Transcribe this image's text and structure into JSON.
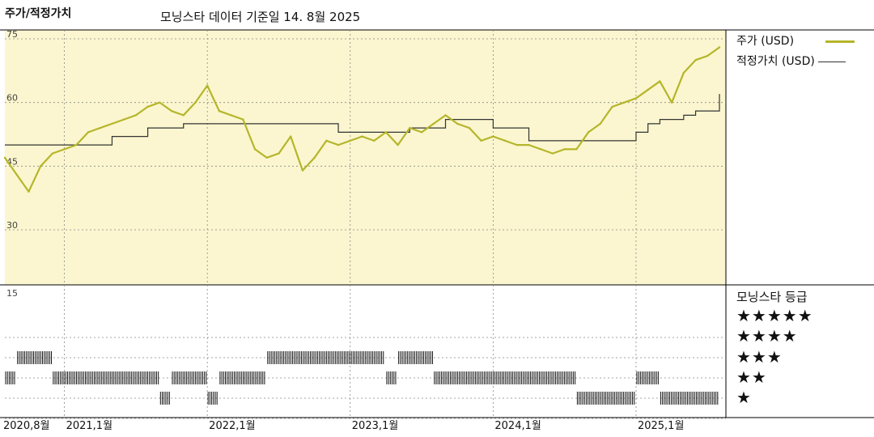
{
  "header": {
    "title": "주가/적정가치",
    "subtitle": "모닝스타 데이터 기준일 14. 8월 2025"
  },
  "legend": {
    "price_label": "주가 (USD)",
    "fair_value_label": "적정가치 (USD)",
    "price_color": "#b5b52a",
    "fair_value_color": "#333333"
  },
  "ratings": {
    "title": "모닝스타 등급",
    "levels": [
      "★★★★★",
      "★★★★",
      "★★★",
      "★★",
      "★"
    ]
  },
  "chart_data": {
    "type": "line",
    "upper_panel": {
      "ylim": [
        15,
        75
      ],
      "yticks": [
        "75",
        "60",
        "45",
        "30"
      ],
      "grid": true,
      "background": "#fbf6cf",
      "series": [
        {
          "name": "주가 (USD)",
          "color": "#b5b52a",
          "x": [
            "2020-08",
            "2020-09",
            "2020-10",
            "2020-11",
            "2020-12",
            "2021-01",
            "2021-02",
            "2021-03",
            "2021-04",
            "2021-05",
            "2021-06",
            "2021-07",
            "2021-08",
            "2021-09",
            "2021-10",
            "2021-11",
            "2021-12",
            "2022-01",
            "2022-02",
            "2022-03",
            "2022-04",
            "2022-05",
            "2022-06",
            "2022-07",
            "2022-08",
            "2022-09",
            "2022-10",
            "2022-11",
            "2022-12",
            "2023-01",
            "2023-02",
            "2023-03",
            "2023-04",
            "2023-05",
            "2023-06",
            "2023-07",
            "2023-08",
            "2023-09",
            "2023-10",
            "2023-11",
            "2023-12",
            "2024-01",
            "2024-02",
            "2024-03",
            "2024-04",
            "2024-05",
            "2024-06",
            "2024-07",
            "2024-08",
            "2024-09",
            "2024-10",
            "2024-11",
            "2024-12",
            "2025-01",
            "2025-02",
            "2025-03",
            "2025-04",
            "2025-05",
            "2025-06",
            "2025-07",
            "2025-08"
          ],
          "values": [
            47,
            43,
            39,
            45,
            48,
            49,
            50,
            53,
            54,
            55,
            56,
            57,
            59,
            60,
            58,
            57,
            60,
            64,
            58,
            57,
            56,
            49,
            47,
            48,
            52,
            44,
            47,
            51,
            50,
            51,
            52,
            51,
            53,
            50,
            54,
            53,
            55,
            57,
            55,
            54,
            51,
            52,
            51,
            50,
            50,
            49,
            48,
            49,
            49,
            53,
            55,
            59,
            60,
            61,
            63,
            65,
            60,
            67,
            70,
            71,
            73
          ]
        },
        {
          "name": "적정가치 (USD)",
          "color": "#333333",
          "x": [
            "2020-08",
            "2020-10",
            "2021-01",
            "2021-03",
            "2021-05",
            "2021-08",
            "2021-11",
            "2022-01",
            "2022-05",
            "2022-09",
            "2022-12",
            "2023-02",
            "2023-06",
            "2023-09",
            "2023-12",
            "2024-01",
            "2024-02",
            "2024-04",
            "2024-06",
            "2024-08",
            "2024-10",
            "2024-12",
            "2025-01",
            "2025-02",
            "2025-03",
            "2025-05",
            "2025-06",
            "2025-07",
            "2025-08"
          ],
          "values": [
            50,
            50,
            50,
            50,
            52,
            54,
            55,
            55,
            55,
            55,
            53,
            53,
            54,
            56,
            56,
            54,
            54,
            51,
            51,
            51,
            51,
            51,
            53,
            55,
            56,
            57,
            58,
            58,
            62
          ]
        }
      ]
    },
    "lower_panel": {
      "label": "모닝스타 등급",
      "ytick": "15",
      "star_ratings": [
        {
          "start": "2020-08",
          "end": "2020-09",
          "stars": 3
        },
        {
          "start": "2020-09",
          "end": "2020-12",
          "stars": 4
        },
        {
          "start": "2020-12",
          "end": "2021-09",
          "stars": 3
        },
        {
          "start": "2021-09",
          "end": "2021-10",
          "stars": 2
        },
        {
          "start": "2021-10",
          "end": "2022-01",
          "stars": 3
        },
        {
          "start": "2022-01",
          "end": "2022-02",
          "stars": 2
        },
        {
          "start": "2022-02",
          "end": "2022-06",
          "stars": 3
        },
        {
          "start": "2022-06",
          "end": "2023-04",
          "stars": 4
        },
        {
          "start": "2023-04",
          "end": "2023-05",
          "stars": 3
        },
        {
          "start": "2023-05",
          "end": "2023-08",
          "stars": 4
        },
        {
          "start": "2023-08",
          "end": "2024-08",
          "stars": 3
        },
        {
          "start": "2024-08",
          "end": "2025-01",
          "stars": 2
        },
        {
          "start": "2025-01",
          "end": "2025-03",
          "stars": 3
        },
        {
          "start": "2025-03",
          "end": "2025-08",
          "stars": 2
        }
      ]
    },
    "x_axis": {
      "start": "2020-08",
      "end": "2025-08",
      "tick_labels": [
        {
          "date": "2020-08",
          "label": "2020,8월"
        },
        {
          "date": "2021-01",
          "label": "2021,1월"
        },
        {
          "date": "2022-01",
          "label": "2022,1월"
        },
        {
          "date": "2023-01",
          "label": "2023,1월"
        },
        {
          "date": "2024-01",
          "label": "2024,1월"
        },
        {
          "date": "2025-01",
          "label": "2025,1월"
        }
      ]
    }
  }
}
